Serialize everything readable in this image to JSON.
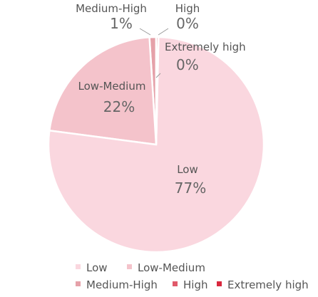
{
  "chart_data": {
    "type": "pie",
    "title": "",
    "slices": [
      {
        "name": "Low",
        "value": 77,
        "label": "77%",
        "color": "#fad7df"
      },
      {
        "name": "Low-Medium",
        "value": 22,
        "label": "22%",
        "color": "#f4c3cb"
      },
      {
        "name": "Medium-High",
        "value": 1,
        "label": "1%",
        "color": "#e5a1a9"
      },
      {
        "name": "High",
        "value": 0.3,
        "label": "0%",
        "color": "#e05a6a"
      },
      {
        "name": "Extremely high",
        "value": 0.05,
        "label": "0%",
        "color": "#d9283e"
      }
    ],
    "legend": {
      "placement": "bottom",
      "rows": [
        [
          "Low",
          "Low-Medium"
        ],
        [
          "Medium-High",
          "High",
          "Extremely high"
        ]
      ]
    }
  }
}
